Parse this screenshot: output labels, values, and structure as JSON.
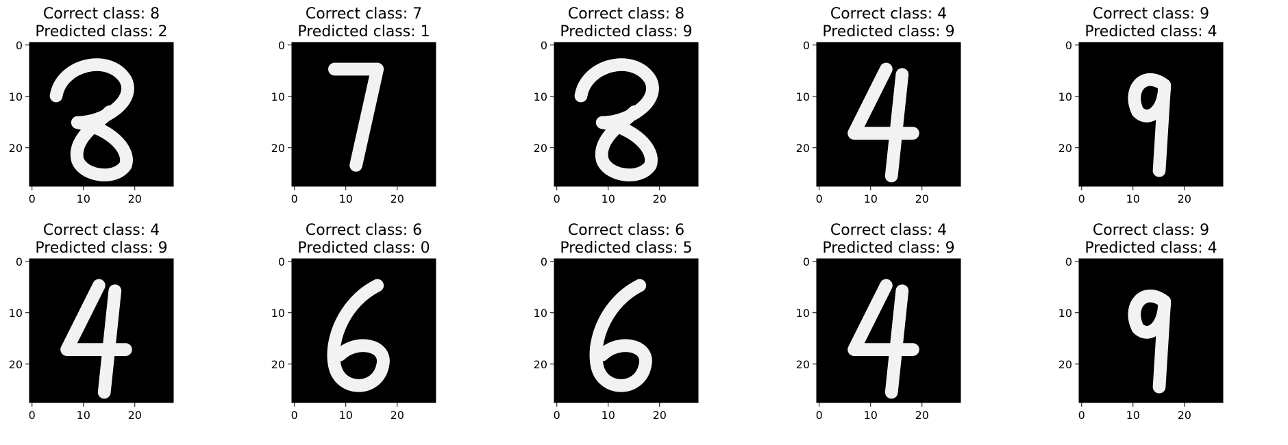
{
  "figure": {
    "colormap": "gray",
    "background_color": "#ffffff",
    "axis_ticks": [
      0,
      10,
      20
    ],
    "image_size": [
      28,
      28
    ]
  },
  "panels": [
    {
      "correct": "Correct class: 8",
      "predicted": "Predicted class: 2",
      "glyph": "8"
    },
    {
      "correct": "Correct class: 7",
      "predicted": "Predicted class: 1",
      "glyph": "7"
    },
    {
      "correct": "Correct class: 8",
      "predicted": "Predicted class: 9",
      "glyph": "8"
    },
    {
      "correct": "Correct class: 4",
      "predicted": "Predicted class: 9",
      "glyph": "4"
    },
    {
      "correct": "Correct class: 9",
      "predicted": "Predicted class: 4",
      "glyph": "9"
    },
    {
      "correct": "Correct class: 4",
      "predicted": "Predicted class: 9",
      "glyph": "4"
    },
    {
      "correct": "Correct class: 6",
      "predicted": "Predicted class: 0",
      "glyph": "6"
    },
    {
      "correct": "Correct class: 6",
      "predicted": "Predicted class: 5",
      "glyph": "6"
    },
    {
      "correct": "Correct class: 4",
      "predicted": "Predicted class: 9",
      "glyph": "4"
    },
    {
      "correct": "Correct class: 9",
      "predicted": "Predicted class: 4",
      "glyph": "9"
    }
  ]
}
